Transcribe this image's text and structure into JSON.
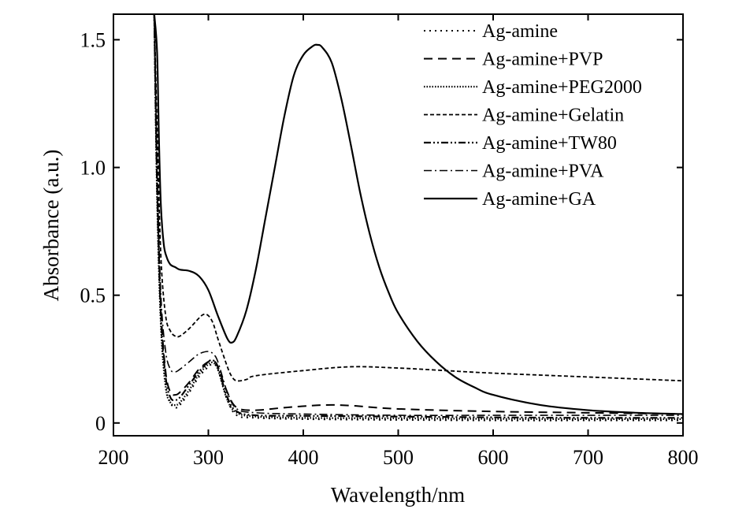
{
  "chart_data": {
    "type": "line",
    "title": "",
    "xlabel": "Wavelength/nm",
    "ylabel": "Absorbance (a.u.)",
    "xlim": [
      200,
      800
    ],
    "ylim": [
      -0.05,
      1.6
    ],
    "xticks": [
      200,
      300,
      400,
      500,
      600,
      700,
      800
    ],
    "xtick_labels": [
      "200",
      "300",
      "400",
      "500",
      "600",
      "700",
      "800"
    ],
    "yticks": [
      0,
      0.5,
      1.0,
      1.5
    ],
    "ytick_labels": [
      "0",
      "0.5",
      "1.0",
      "1.5"
    ],
    "grid": false,
    "legend_position": "top-right",
    "series": [
      {
        "name": "Ag-amine",
        "dash": "dotted",
        "x": [
          243,
          246,
          250,
          255,
          260,
          265,
          270,
          280,
          290,
          300,
          305,
          310,
          320,
          330,
          350,
          400,
          500,
          600,
          700,
          800
        ],
        "y": [
          1.6,
          0.9,
          0.4,
          0.15,
          0.08,
          0.06,
          0.07,
          0.12,
          0.18,
          0.22,
          0.23,
          0.21,
          0.09,
          0.03,
          0.02,
          0.015,
          0.012,
          0.01,
          0.01,
          0.01
        ]
      },
      {
        "name": "Ag-amine+PVP",
        "dash": "dashed",
        "x": [
          243,
          246,
          250,
          255,
          260,
          265,
          270,
          280,
          290,
          300,
          305,
          310,
          320,
          330,
          350,
          380,
          420,
          450,
          500,
          600,
          700,
          800
        ],
        "y": [
          1.6,
          0.95,
          0.45,
          0.2,
          0.12,
          0.11,
          0.12,
          0.16,
          0.21,
          0.24,
          0.245,
          0.22,
          0.12,
          0.06,
          0.05,
          0.06,
          0.07,
          0.068,
          0.055,
          0.045,
          0.04,
          0.035
        ]
      },
      {
        "name": "Ag-amine+PEG2000",
        "dash": "fine-dotted",
        "x": [
          243,
          246,
          250,
          255,
          260,
          265,
          270,
          280,
          290,
          300,
          305,
          310,
          320,
          330,
          350,
          400,
          500,
          600,
          700,
          800
        ],
        "y": [
          1.6,
          0.88,
          0.38,
          0.14,
          0.08,
          0.07,
          0.08,
          0.13,
          0.19,
          0.23,
          0.235,
          0.21,
          0.09,
          0.04,
          0.025,
          0.02,
          0.018,
          0.016,
          0.015,
          0.015
        ]
      },
      {
        "name": "Ag-amine+Gelatin",
        "dash": "short-dashed",
        "x": [
          243,
          246,
          250,
          255,
          260,
          265,
          270,
          280,
          290,
          295,
          300,
          305,
          310,
          320,
          325,
          330,
          340,
          350,
          400,
          450,
          500,
          550,
          600,
          700,
          800
        ],
        "y": [
          1.6,
          1.15,
          0.65,
          0.42,
          0.36,
          0.34,
          0.34,
          0.37,
          0.41,
          0.425,
          0.42,
          0.39,
          0.33,
          0.22,
          0.18,
          0.165,
          0.17,
          0.185,
          0.205,
          0.22,
          0.215,
          0.205,
          0.195,
          0.18,
          0.165
        ]
      },
      {
        "name": "Ag-amine+TW80",
        "dash": "dash-dot-dot",
        "x": [
          243,
          246,
          250,
          255,
          260,
          265,
          270,
          280,
          290,
          300,
          305,
          310,
          320,
          330,
          350,
          400,
          500,
          600,
          700,
          800
        ],
        "y": [
          1.6,
          0.92,
          0.42,
          0.18,
          0.1,
          0.09,
          0.1,
          0.15,
          0.2,
          0.24,
          0.245,
          0.22,
          0.1,
          0.045,
          0.03,
          0.028,
          0.025,
          0.022,
          0.02,
          0.02
        ]
      },
      {
        "name": "Ag-amine+PVA",
        "dash": "dash-dot",
        "x": [
          243,
          246,
          250,
          255,
          260,
          265,
          270,
          280,
          290,
          300,
          305,
          310,
          320,
          330,
          350,
          400,
          500,
          600,
          700,
          800
        ],
        "y": [
          1.6,
          1.0,
          0.5,
          0.28,
          0.21,
          0.2,
          0.21,
          0.24,
          0.27,
          0.28,
          0.27,
          0.24,
          0.12,
          0.055,
          0.04,
          0.035,
          0.03,
          0.03,
          0.03,
          0.03
        ]
      },
      {
        "name": "Ag-amine+GA",
        "dash": "solid",
        "x": [
          243,
          246,
          248,
          250,
          253,
          256,
          260,
          265,
          270,
          280,
          290,
          300,
          310,
          320,
          325,
          330,
          340,
          350,
          360,
          370,
          380,
          390,
          400,
          410,
          415,
          420,
          430,
          440,
          450,
          460,
          470,
          480,
          490,
          500,
          520,
          540,
          560,
          580,
          600,
          650,
          700,
          750,
          800
        ],
        "y": [
          1.6,
          1.45,
          1.1,
          0.85,
          0.7,
          0.65,
          0.62,
          0.61,
          0.6,
          0.595,
          0.575,
          0.52,
          0.42,
          0.33,
          0.315,
          0.34,
          0.44,
          0.6,
          0.8,
          1.0,
          1.2,
          1.36,
          1.44,
          1.475,
          1.48,
          1.47,
          1.41,
          1.27,
          1.09,
          0.9,
          0.74,
          0.61,
          0.51,
          0.43,
          0.32,
          0.24,
          0.18,
          0.14,
          0.11,
          0.07,
          0.05,
          0.04,
          0.035
        ]
      }
    ]
  }
}
